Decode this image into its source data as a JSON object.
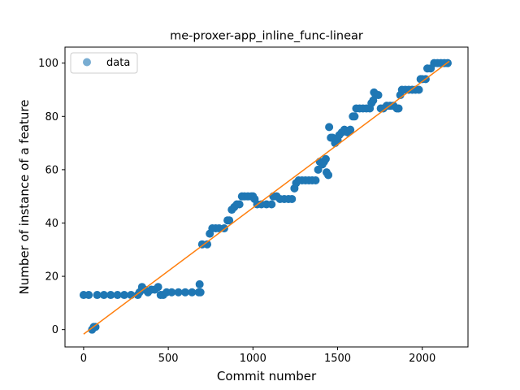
{
  "chart_data": {
    "type": "scatter",
    "title": "me-proxer-app_inline_func-linear",
    "xlabel": "Commit number",
    "ylabel": "Number of instance of a feature",
    "xlim": [
      -110,
      2270
    ],
    "ylim": [
      -6.5,
      106
    ],
    "xticks": [
      0,
      500,
      1000,
      1500,
      2000
    ],
    "yticks": [
      0,
      20,
      40,
      60,
      80,
      100
    ],
    "grid": false,
    "legend": {
      "position": "top-left",
      "entries": [
        "data"
      ]
    },
    "colors": {
      "points": "#1f77b4",
      "fit_line": "#ff7f0e"
    },
    "series": [
      {
        "name": "data",
        "points": [
          [
            0,
            13
          ],
          [
            30,
            13
          ],
          [
            50,
            0
          ],
          [
            60,
            1
          ],
          [
            70,
            1
          ],
          [
            80,
            13
          ],
          [
            120,
            13
          ],
          [
            160,
            13
          ],
          [
            200,
            13
          ],
          [
            240,
            13
          ],
          [
            280,
            13
          ],
          [
            320,
            13
          ],
          [
            330,
            14
          ],
          [
            345,
            16
          ],
          [
            360,
            15
          ],
          [
            380,
            14
          ],
          [
            400,
            15
          ],
          [
            420,
            15
          ],
          [
            440,
            16
          ],
          [
            455,
            13
          ],
          [
            470,
            13
          ],
          [
            490,
            14
          ],
          [
            520,
            14
          ],
          [
            560,
            14
          ],
          [
            600,
            14
          ],
          [
            640,
            14
          ],
          [
            680,
            14
          ],
          [
            685,
            17
          ],
          [
            690,
            14
          ],
          [
            700,
            32
          ],
          [
            730,
            32
          ],
          [
            745,
            36
          ],
          [
            760,
            38
          ],
          [
            780,
            38
          ],
          [
            800,
            38
          ],
          [
            830,
            38
          ],
          [
            850,
            41
          ],
          [
            860,
            41
          ],
          [
            875,
            45
          ],
          [
            890,
            46
          ],
          [
            905,
            47
          ],
          [
            920,
            47
          ],
          [
            935,
            50
          ],
          [
            950,
            50
          ],
          [
            970,
            50
          ],
          [
            990,
            50
          ],
          [
            1000,
            50
          ],
          [
            1010,
            49
          ],
          [
            1025,
            47
          ],
          [
            1050,
            47
          ],
          [
            1080,
            47
          ],
          [
            1110,
            47
          ],
          [
            1120,
            50
          ],
          [
            1140,
            50
          ],
          [
            1160,
            49
          ],
          [
            1185,
            49
          ],
          [
            1210,
            49
          ],
          [
            1230,
            49
          ],
          [
            1245,
            53
          ],
          [
            1255,
            55
          ],
          [
            1270,
            56
          ],
          [
            1290,
            56
          ],
          [
            1310,
            56
          ],
          [
            1330,
            56
          ],
          [
            1350,
            56
          ],
          [
            1370,
            56
          ],
          [
            1385,
            60
          ],
          [
            1395,
            63
          ],
          [
            1410,
            62
          ],
          [
            1420,
            63
          ],
          [
            1430,
            64
          ],
          [
            1435,
            59
          ],
          [
            1445,
            58
          ],
          [
            1450,
            76
          ],
          [
            1460,
            72
          ],
          [
            1470,
            72
          ],
          [
            1485,
            70
          ],
          [
            1500,
            71
          ],
          [
            1510,
            73
          ],
          [
            1525,
            74
          ],
          [
            1540,
            75
          ],
          [
            1560,
            74
          ],
          [
            1575,
            75
          ],
          [
            1590,
            80
          ],
          [
            1600,
            80
          ],
          [
            1610,
            83
          ],
          [
            1630,
            83
          ],
          [
            1650,
            83
          ],
          [
            1670,
            83
          ],
          [
            1690,
            83
          ],
          [
            1700,
            85
          ],
          [
            1710,
            86
          ],
          [
            1715,
            89
          ],
          [
            1725,
            88
          ],
          [
            1740,
            88
          ],
          [
            1755,
            83
          ],
          [
            1770,
            83
          ],
          [
            1790,
            84
          ],
          [
            1810,
            84
          ],
          [
            1830,
            84
          ],
          [
            1850,
            83
          ],
          [
            1860,
            83
          ],
          [
            1870,
            88
          ],
          [
            1880,
            90
          ],
          [
            1900,
            90
          ],
          [
            1920,
            90
          ],
          [
            1940,
            90
          ],
          [
            1960,
            90
          ],
          [
            1980,
            90
          ],
          [
            1990,
            94
          ],
          [
            2000,
            94
          ],
          [
            2020,
            94
          ],
          [
            2030,
            98
          ],
          [
            2050,
            98
          ],
          [
            2070,
            100
          ],
          [
            2090,
            100
          ],
          [
            2110,
            100
          ],
          [
            2130,
            100
          ],
          [
            2150,
            100
          ]
        ]
      },
      {
        "name": "fit",
        "line": [
          [
            0,
            -1.7
          ],
          [
            2160,
            100.7
          ]
        ]
      }
    ]
  }
}
